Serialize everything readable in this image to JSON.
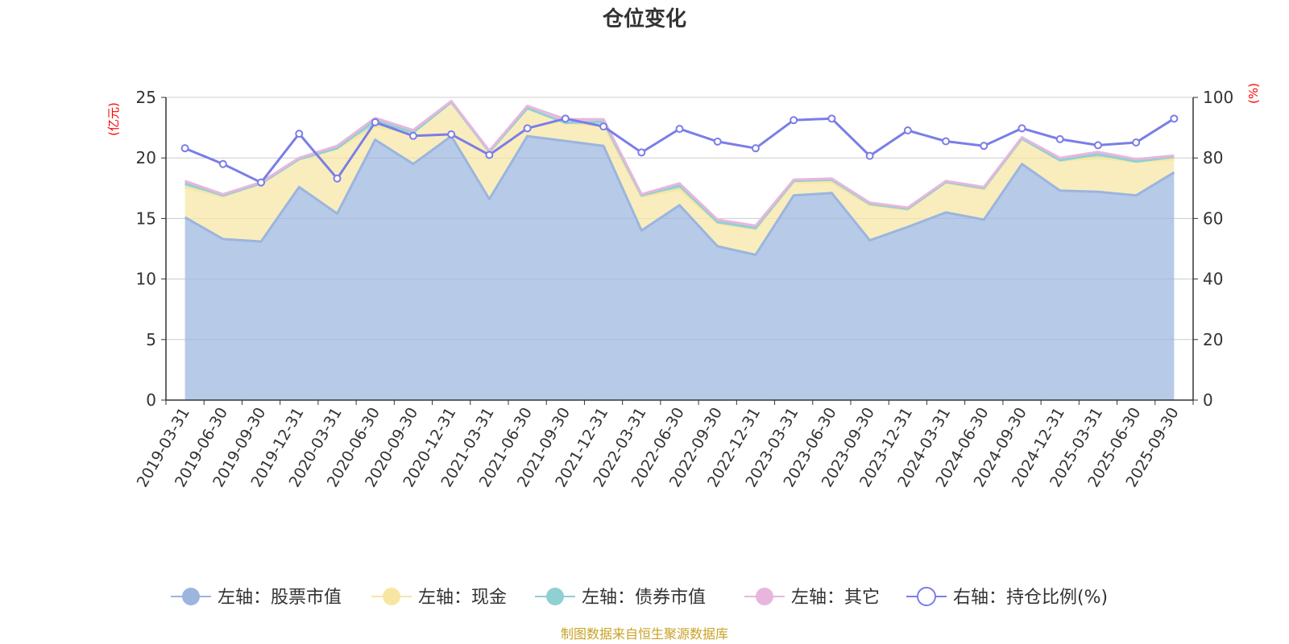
{
  "chart_data": {
    "type": "area",
    "title": "仓位变化",
    "left_axis_unit": "(亿元)",
    "right_axis_unit": "(%)",
    "source_note": "制图数据来自恒生聚源数据库",
    "categories": [
      "2019-03-31",
      "2019-06-30",
      "2019-09-30",
      "2019-12-31",
      "2020-03-31",
      "2020-06-30",
      "2020-09-30",
      "2020-12-31",
      "2021-03-31",
      "2021-06-30",
      "2021-09-30",
      "2021-12-31",
      "2022-03-31",
      "2022-06-30",
      "2022-09-30",
      "2022-12-31",
      "2023-03-31",
      "2023-06-30",
      "2023-09-30",
      "2023-12-31",
      "2024-03-31",
      "2024-06-30",
      "2024-09-30",
      "2024-12-31",
      "2025-03-31",
      "2025-06-30",
      "2025-09-30"
    ],
    "ylim_left": [
      0,
      25
    ],
    "yticks_left": [
      0,
      5,
      10,
      15,
      20,
      25
    ],
    "ylim_right": [
      0,
      100
    ],
    "yticks_right": [
      0,
      20,
      40,
      60,
      80,
      100
    ],
    "grid": true,
    "legend_position": "bottom",
    "series": [
      {
        "name": "左轴：股票市值",
        "axis": "left",
        "stack": true,
        "color": "#9bb5df",
        "values": [
          15.1,
          13.3,
          13.1,
          17.6,
          15.4,
          21.5,
          19.5,
          21.8,
          16.6,
          21.8,
          21.4,
          21.0,
          14.0,
          16.1,
          12.7,
          12.0,
          16.9,
          17.1,
          13.2,
          14.3,
          15.5,
          14.9,
          19.5,
          17.3,
          17.2,
          16.9,
          18.8
        ]
      },
      {
        "name": "左轴：现金",
        "axis": "left",
        "stack": true,
        "color": "#f7e6a3",
        "values": [
          2.5,
          3.5,
          4.8,
          2.3,
          5.4,
          1.1,
          2.6,
          2.8,
          3.9,
          2.3,
          1.5,
          1.7,
          2.8,
          1.3,
          1.9,
          2.1,
          1.1,
          0.9,
          2.9,
          1.4,
          2.5,
          2.5,
          2.1,
          2.5,
          2.8,
          2.8,
          1.1
        ]
      },
      {
        "name": "左轴：债券市值",
        "axis": "left",
        "stack": true,
        "color": "#8fd0d3",
        "values": [
          0.3,
          0.1,
          0.0,
          0.0,
          0.0,
          0.5,
          0.0,
          0.0,
          0.0,
          0.0,
          0.0,
          0.3,
          0.1,
          0.3,
          0.1,
          0.1,
          0.1,
          0.2,
          0.1,
          0.1,
          0.0,
          0.1,
          0.0,
          0.0,
          0.3,
          0.0,
          0.2
        ]
      },
      {
        "name": "左轴：其它",
        "axis": "left",
        "stack": true,
        "color": "#e8b6dd",
        "values": [
          0.2,
          0.1,
          0.1,
          0.1,
          0.2,
          0.2,
          0.2,
          0.1,
          0.1,
          0.2,
          0.3,
          0.2,
          0.1,
          0.2,
          0.2,
          0.2,
          0.1,
          0.1,
          0.1,
          0.1,
          0.1,
          0.1,
          0.1,
          0.2,
          0.2,
          0.2,
          0.1
        ]
      },
      {
        "name": "右轴：持仓比例(%)",
        "axis": "right",
        "type": "line",
        "color": "#7b7de8",
        "values": [
          83.2,
          78.0,
          71.9,
          88.0,
          73.2,
          91.8,
          87.3,
          87.8,
          81.0,
          89.8,
          93.0,
          90.4,
          81.8,
          89.6,
          85.4,
          83.2,
          92.5,
          93.0,
          80.7,
          89.1,
          85.5,
          84.0,
          89.8,
          86.2,
          84.2,
          85.1,
          93.0
        ]
      }
    ]
  }
}
